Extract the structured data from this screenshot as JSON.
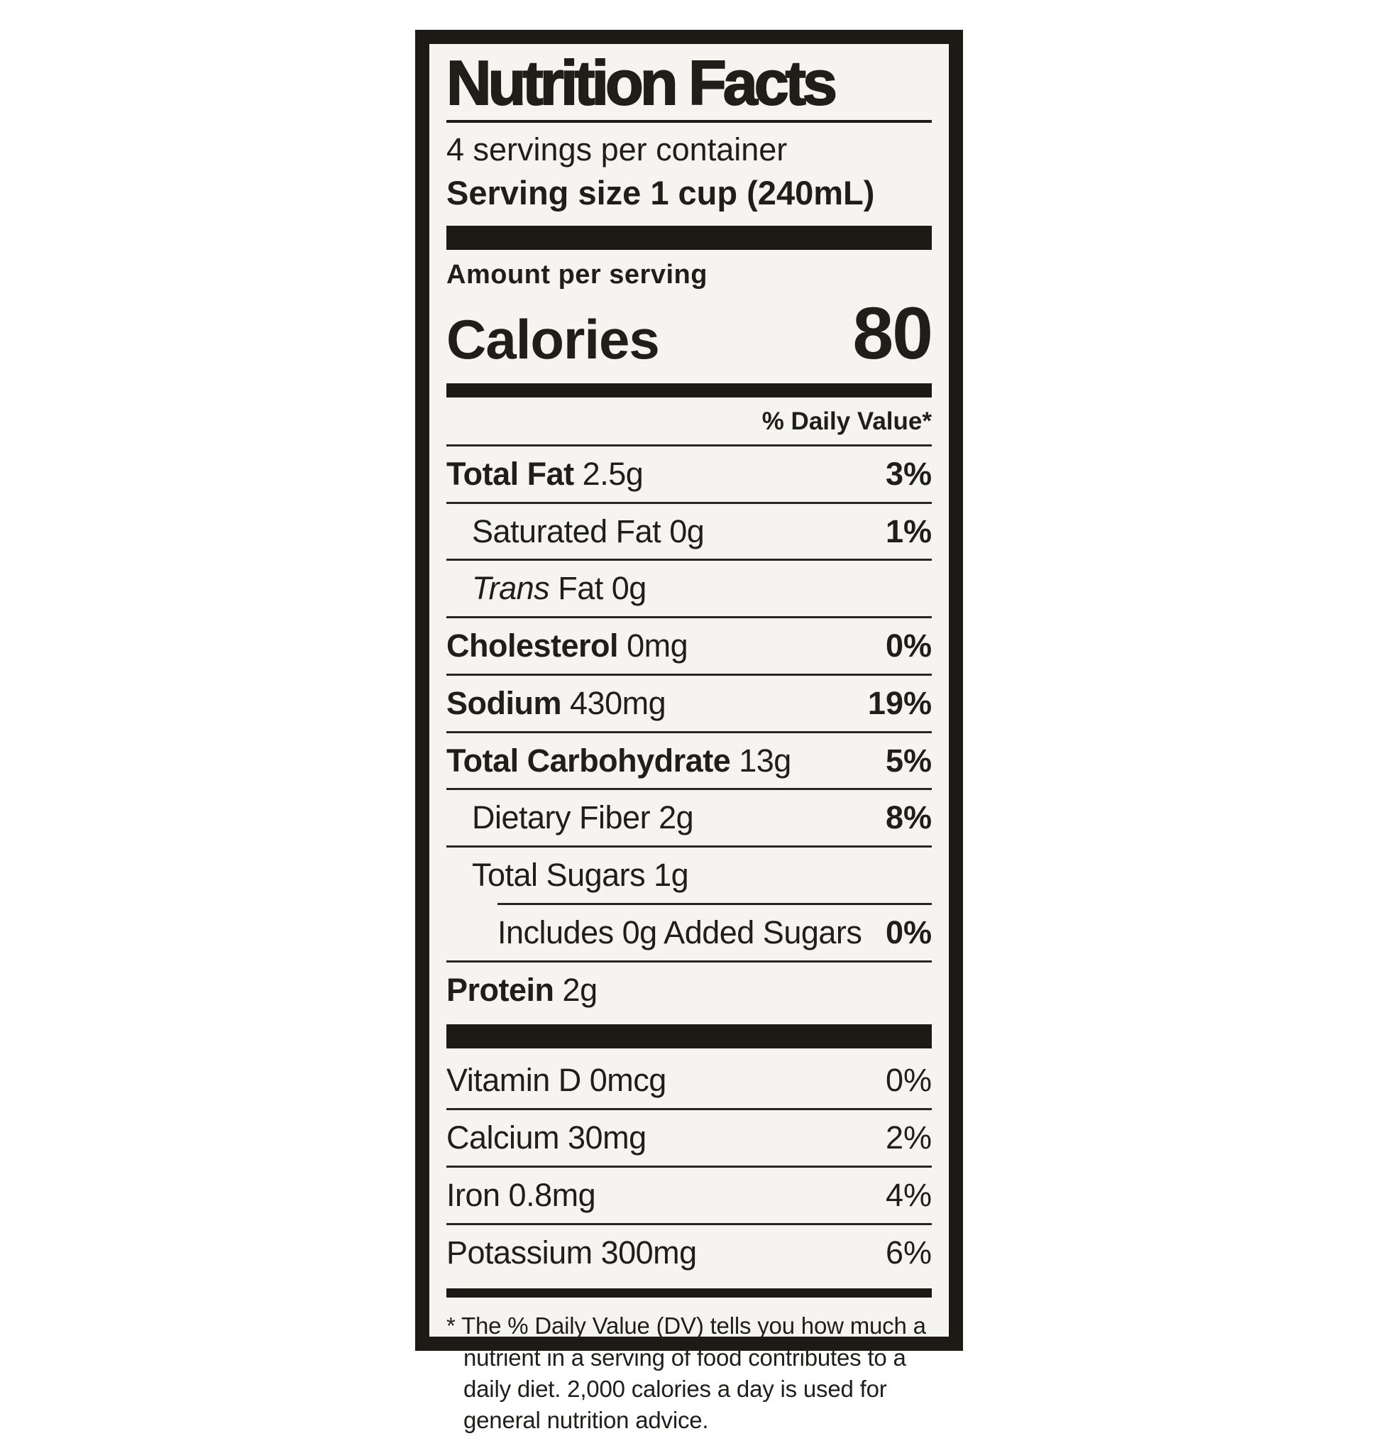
{
  "colors": {
    "page_bg": "#ffffff",
    "label_bg": "#f6f4f1",
    "ink": "#211d19"
  },
  "label": {
    "title": "Nutrition Facts",
    "servings_per_container": "4 servings per container",
    "serving_size": "Serving size 1 cup (240mL)",
    "amount_per_serving": "Amount per serving",
    "calories": {
      "label": "Calories",
      "value": "80"
    },
    "daily_value_header": "% Daily Value*",
    "nutrients": [
      {
        "name": "Total Fat",
        "amount": "2.5g",
        "dv": "3%"
      },
      {
        "name": "Saturated Fat",
        "amount": "0g",
        "dv": "1%"
      },
      {
        "name_italic": "Trans",
        "name": "Fat",
        "amount": "0g",
        "dv": ""
      },
      {
        "name": "Cholesterol",
        "amount": "0mg",
        "dv": "0%"
      },
      {
        "name": "Sodium",
        "amount": "430mg",
        "dv": "19%"
      },
      {
        "name": "Total Carbohydrate",
        "amount": "13g",
        "dv": "5%"
      },
      {
        "name": "Dietary Fiber",
        "amount": "2g",
        "dv": "8%"
      },
      {
        "name": "Total Sugars",
        "amount": "1g",
        "dv": ""
      },
      {
        "name": "Includes 0g Added Sugars",
        "amount": "",
        "dv": "0%"
      },
      {
        "name": "Protein",
        "amount": "2g",
        "dv": ""
      }
    ],
    "vitamins": [
      {
        "name": "Vitamin D 0mcg",
        "dv": "0%"
      },
      {
        "name": "Calcium 30mg",
        "dv": "2%"
      },
      {
        "name": "Iron 0.8mg",
        "dv": "4%"
      },
      {
        "name": "Potassium 300mg",
        "dv": "6%"
      }
    ],
    "footnote": "* The % Daily Value (DV) tells you how much a nutrient in a serving of food contributes to a daily diet. 2,000 calories a day is used for general nutrition advice."
  }
}
